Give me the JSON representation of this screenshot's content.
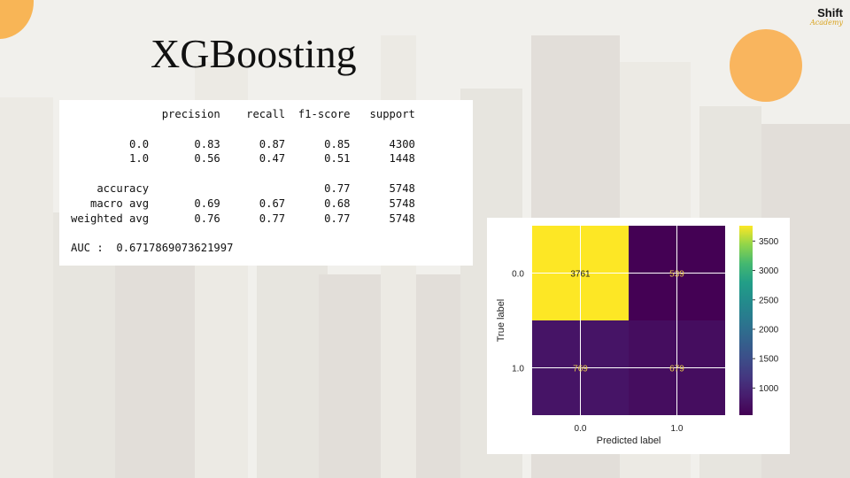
{
  "slide": {
    "title": "XGBoosting",
    "logo": {
      "line1": "Shift",
      "line2": "Academy"
    },
    "colors": {
      "accent": "#f9b55e",
      "background": "#ecebe7"
    }
  },
  "report": {
    "lines": [
      "              precision    recall  f1-score   support",
      "",
      "         0.0       0.83      0.87      0.85      4300",
      "         1.0       0.56      0.47      0.51      1448",
      "",
      "    accuracy                           0.77      5748",
      "   macro avg       0.69      0.67      0.68      5748",
      "weighted avg       0.76      0.77      0.77      5748",
      "",
      "AUC :  0.6717869073621997"
    ]
  },
  "chart_data": {
    "type": "heatmap",
    "xlabel": "Predicted label",
    "ylabel": "True label",
    "x_categories": [
      "0.0",
      "1.0"
    ],
    "y_categories": [
      "0.0",
      "1.0"
    ],
    "values": [
      [
        3761,
        539
      ],
      [
        769,
        679
      ]
    ],
    "colorbar": {
      "min": 539,
      "max": 3761,
      "ticks": [
        "1000",
        "1500",
        "2000",
        "2500",
        "3000",
        "3500"
      ]
    },
    "colormap": "viridis",
    "grid": true
  }
}
